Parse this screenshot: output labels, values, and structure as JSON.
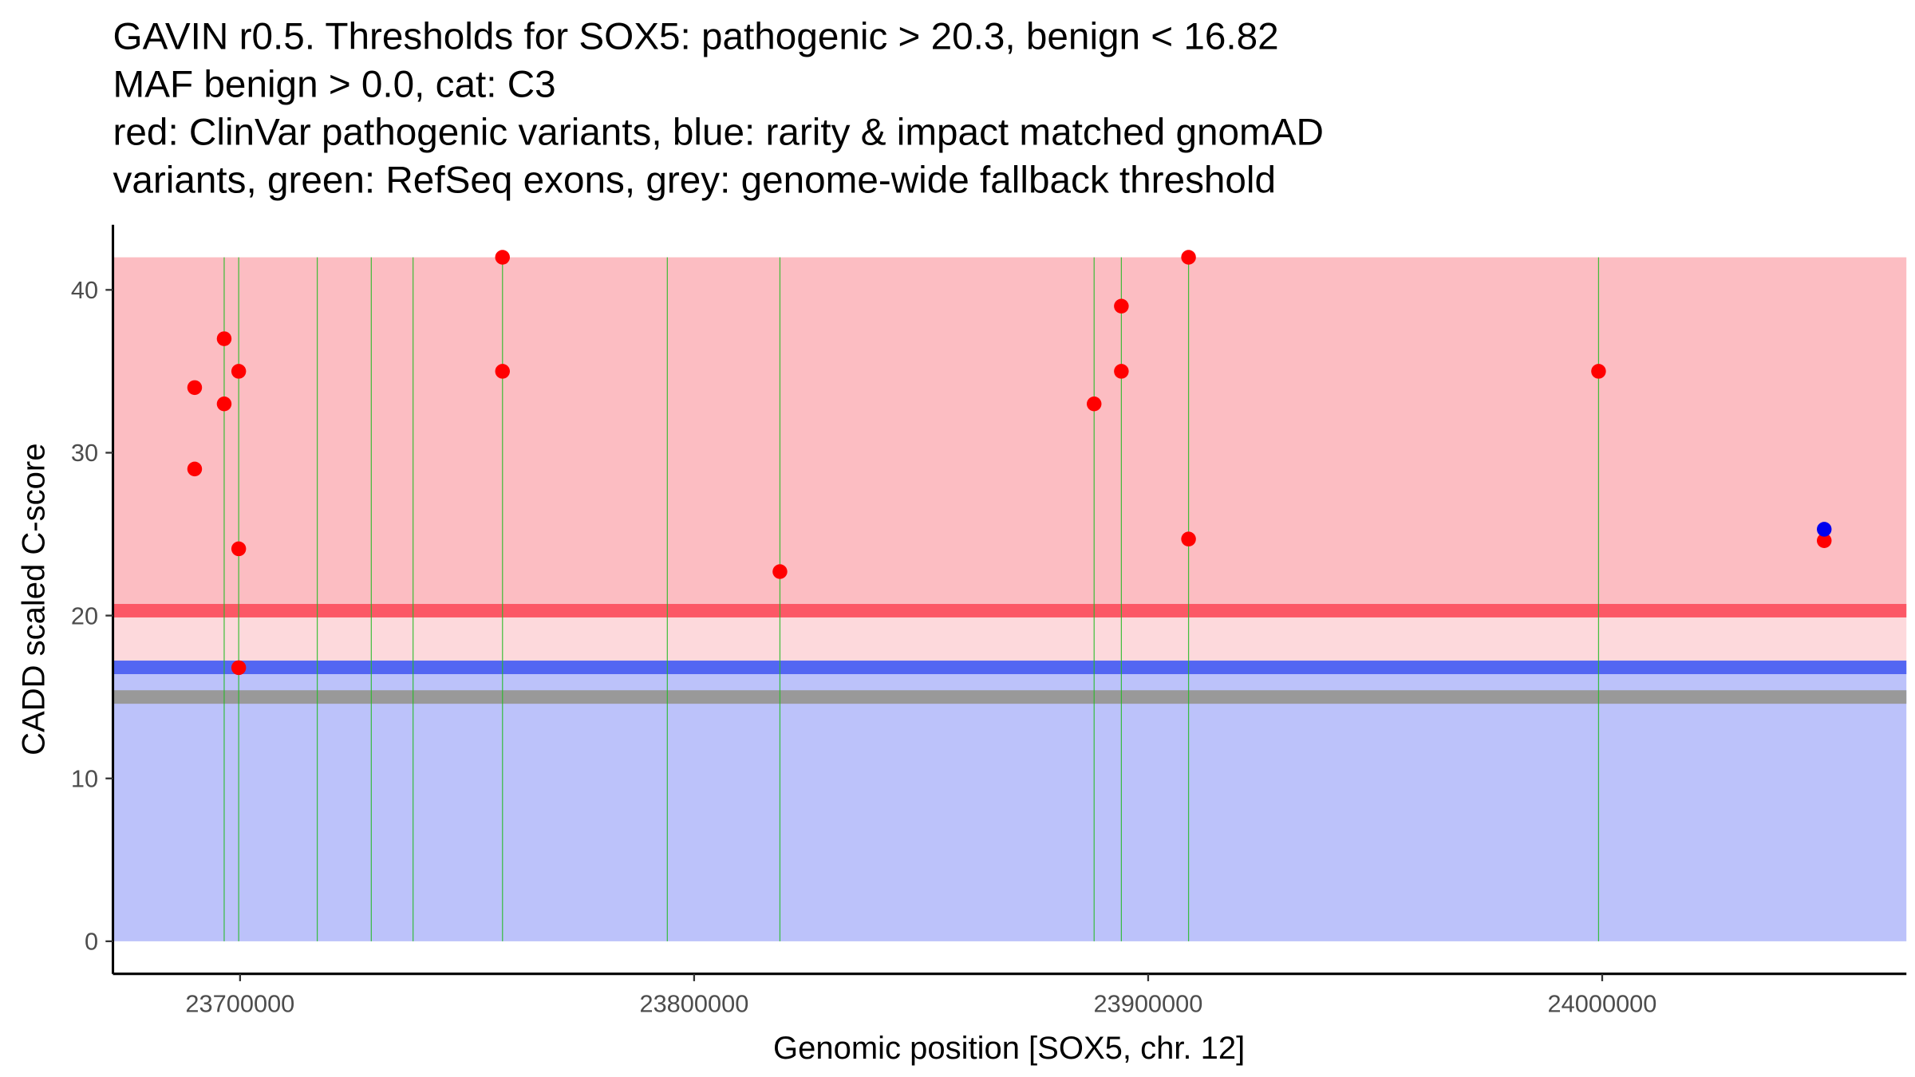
{
  "chart_data": {
    "type": "scatter",
    "title_lines": [
      "GAVIN r0.5. Thresholds for SOX5: pathogenic > 20.3, benign < 16.82",
      "MAF benign > 0.0, cat: C3",
      "red: ClinVar pathogenic variants, blue: rarity & impact matched gnomAD",
      "variants, green: RefSeq exons, grey: genome-wide fallback threshold"
    ],
    "xlabel": "Genomic position [SOX5, chr. 12]",
    "ylabel": "CADD scaled C-score",
    "xlim": [
      23672000,
      24067000
    ],
    "ylim": [
      -2,
      44
    ],
    "x_ticks": [
      23700000,
      23800000,
      23900000,
      24000000
    ],
    "x_tick_labels": [
      "23700000",
      "23800000",
      "23900000",
      "24000000"
    ],
    "y_ticks": [
      0,
      10,
      20,
      30,
      40
    ],
    "y_tick_labels": [
      "0",
      "10",
      "20",
      "30",
      "40"
    ],
    "thresholds": {
      "pathogenic": 20.3,
      "benign": 16.82,
      "fallback": 15.0,
      "max": 42
    },
    "colors": {
      "pathogenic_zone": "#fcbdc2",
      "grey_zone": "#fdd9dc",
      "benign_zone": "#bcc2fa",
      "pathogenic_line": "#fc5866",
      "benign_line": "#5366f2",
      "fallback_line": "#999999",
      "exon": "#22bb22",
      "clinvar": "#ff0000",
      "gnomad": "#0000ee"
    },
    "exons": [
      23696500,
      23699700,
      23717000,
      23728900,
      23738100,
      23757800,
      23794100,
      23818900,
      23888100,
      23894100,
      23908900,
      23999200
    ],
    "series": [
      {
        "name": "ClinVar pathogenic",
        "color": "#ff0000",
        "points": [
          [
            23690000,
            34
          ],
          [
            23690000,
            29
          ],
          [
            23696500,
            37
          ],
          [
            23696500,
            33
          ],
          [
            23699700,
            35
          ],
          [
            23699700,
            24.1
          ],
          [
            23699700,
            16.8
          ],
          [
            23757800,
            42
          ],
          [
            23757800,
            35
          ],
          [
            23818900,
            22.7
          ],
          [
            23888100,
            33
          ],
          [
            23894100,
            39
          ],
          [
            23894100,
            35
          ],
          [
            23908900,
            42
          ],
          [
            23908900,
            24.7
          ],
          [
            23999200,
            35
          ],
          [
            24048900,
            24.6
          ]
        ]
      },
      {
        "name": "gnomAD matched",
        "color": "#0000ee",
        "points": [
          [
            24048900,
            25.3
          ]
        ]
      }
    ]
  }
}
